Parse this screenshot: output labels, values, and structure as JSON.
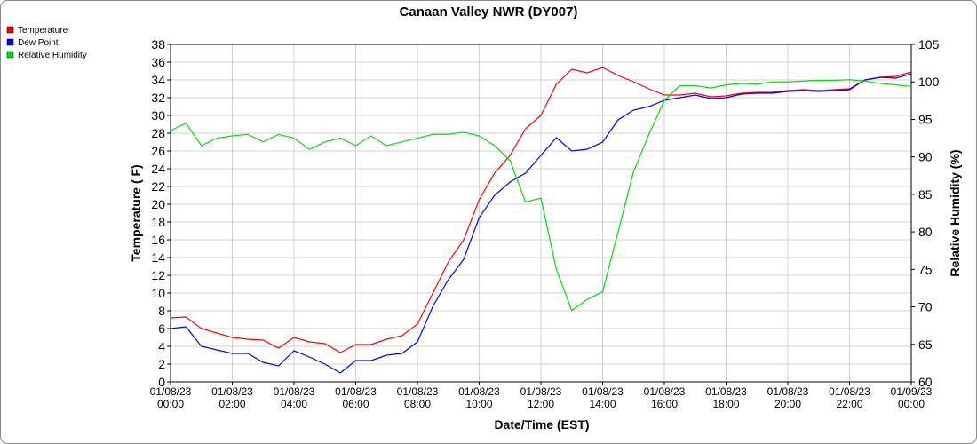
{
  "chart_data": {
    "type": "line",
    "title": "Canaan Valley NWR (DY007)",
    "x_label": "Date/Time (EST)",
    "y_label": "Temperature ( F)",
    "y2_label": "Relative Humidity (%)",
    "x": [
      0,
      0.5,
      1,
      1.5,
      2,
      2.5,
      3,
      3.5,
      4,
      4.5,
      5,
      5.5,
      6,
      6.5,
      7,
      7.5,
      8,
      8.5,
      9,
      9.5,
      10,
      10.5,
      11,
      11.5,
      12,
      12.5,
      13,
      13.5,
      14,
      14.5,
      15,
      15.5,
      16,
      16.5,
      17,
      17.5,
      18,
      18.5,
      19,
      19.5,
      20,
      20.5,
      21,
      21.5,
      22,
      22.5,
      23,
      23.5,
      24
    ],
    "series": [
      {
        "name": "Temperature",
        "color": "#ff0000",
        "values": [
          7.2,
          7.3,
          6.0,
          5.5,
          5.0,
          4.8,
          4.7,
          3.8,
          5.0,
          4.5,
          4.3,
          3.3,
          4.2,
          4.2,
          4.8,
          5.2,
          6.5,
          10,
          13.5,
          16,
          20.5,
          23.5,
          25.5,
          28.5,
          30,
          33.5,
          35.2,
          34.8,
          35.4,
          34.5,
          33.8,
          33,
          32.3,
          32.3,
          32.5,
          32.1,
          32.2,
          32.5,
          32.6,
          32.6,
          32.8,
          32.9,
          32.8,
          32.9,
          33,
          34,
          34.3,
          34.4,
          34.9
        ]
      },
      {
        "name": "Dew Point",
        "color": "#0000ff",
        "values": [
          6.0,
          6.2,
          4.0,
          3.6,
          3.2,
          3.2,
          2.2,
          1.8,
          3.5,
          2.8,
          2.0,
          1.0,
          2.4,
          2.4,
          3.0,
          3.2,
          4.5,
          8.5,
          11.5,
          13.8,
          18.5,
          21,
          22.5,
          23.5,
          25.5,
          27.5,
          26,
          26.2,
          27,
          29.5,
          30.6,
          31,
          31.7,
          32,
          32.3,
          31.9,
          32,
          32.4,
          32.5,
          32.5,
          32.7,
          32.8,
          32.7,
          32.8,
          32.9,
          34,
          34.3,
          34.2,
          34.7
        ]
      },
      {
        "name": "Relative Humidity",
        "color": "#00e000",
        "axis": "y2",
        "values": [
          93.5,
          94.5,
          91.5,
          92.5,
          92.8,
          93,
          92,
          93,
          92.5,
          91,
          92,
          92.5,
          91.5,
          92.8,
          91.5,
          92,
          92.5,
          93,
          93,
          93.3,
          92.8,
          91.5,
          89.5,
          84,
          84.5,
          75,
          69.5,
          71,
          72,
          80,
          88,
          93,
          97.5,
          99.5,
          99.5,
          99.2,
          99.6,
          99.8,
          99.7,
          100,
          100,
          100.1,
          100.2,
          100.2,
          100.3,
          100.1,
          99.8,
          99.6,
          99.4
        ]
      }
    ],
    "xlim": [
      0,
      24
    ],
    "xticks": [
      {
        "value": 0,
        "label": "01/08/23 00:00"
      },
      {
        "value": 2,
        "label": "01/08/23 02:00"
      },
      {
        "value": 4,
        "label": "01/08/23 04:00"
      },
      {
        "value": 6,
        "label": "01/08/23 06:00"
      },
      {
        "value": 8,
        "label": "01/08/23 08:00"
      },
      {
        "value": 10,
        "label": "01/08/23 10:00"
      },
      {
        "value": 12,
        "label": "01/08/23 12:00"
      },
      {
        "value": 14,
        "label": "01/08/23 14:00"
      },
      {
        "value": 16,
        "label": "01/08/23 16:00"
      },
      {
        "value": 18,
        "label": "01/08/23 18:00"
      },
      {
        "value": 20,
        "label": "01/08/23 20:00"
      },
      {
        "value": 22,
        "label": "01/08/23 22:00"
      },
      {
        "value": 24,
        "label": "01/09/23 00:00"
      }
    ],
    "ylim": [
      0,
      38
    ],
    "yticks": [
      0,
      2,
      4,
      6,
      8,
      10,
      12,
      14,
      16,
      18,
      20,
      22,
      24,
      26,
      28,
      30,
      32,
      34,
      36,
      38
    ],
    "y2lim": [
      60,
      105
    ],
    "y2ticks": [
      60,
      65,
      70,
      75,
      80,
      85,
      90,
      95,
      100,
      105
    ],
    "grid": true,
    "legend": "top-left"
  }
}
